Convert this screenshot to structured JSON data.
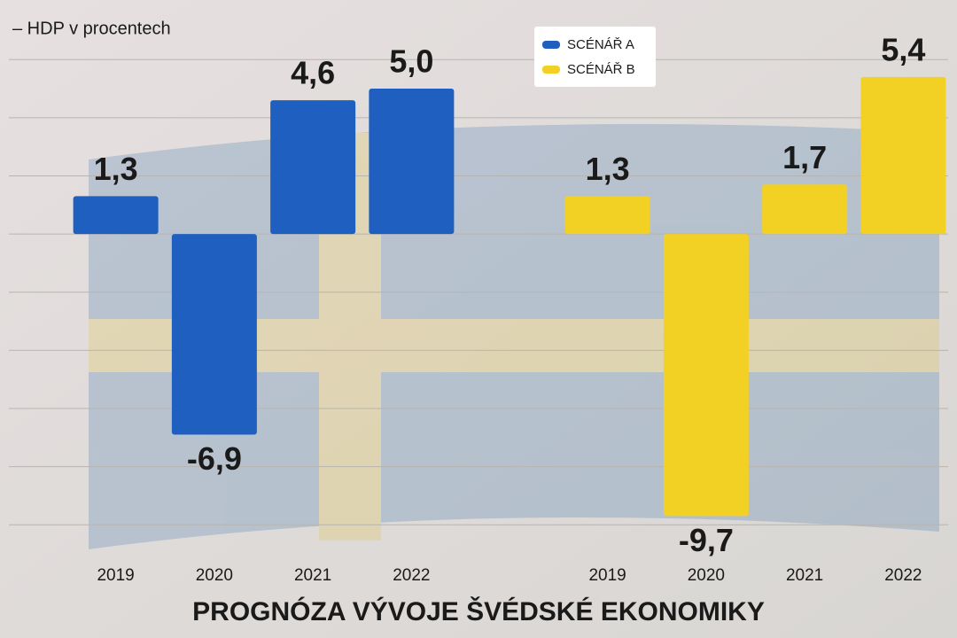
{
  "chart_data": {
    "type": "bar",
    "title": "PROGNÓZA VÝVOJE ŠVÉDSKÉ EKONOMIKY",
    "y_label": "– HDP v procentech",
    "categories": [
      "2019",
      "2020",
      "2021",
      "2022"
    ],
    "series": [
      {
        "name": "SCÉNÁŘ A",
        "color": "#1f5fc0",
        "values": [
          1.3,
          -6.9,
          4.6,
          5.0
        ],
        "value_labels": [
          "1,3",
          "-6,9",
          "4,6",
          "5,0"
        ]
      },
      {
        "name": "SCÉNÁŘ B",
        "color": "#f2d024",
        "values": [
          1.3,
          -9.7,
          1.7,
          5.4
        ],
        "value_labels": [
          "1,3",
          "-9,7",
          "1,7",
          "5,4"
        ]
      }
    ],
    "ylim": [
      -11,
      7.5
    ],
    "yticks": [
      6,
      4,
      2,
      0,
      -2,
      -4,
      -6,
      -8,
      -10
    ],
    "grid": true
  }
}
